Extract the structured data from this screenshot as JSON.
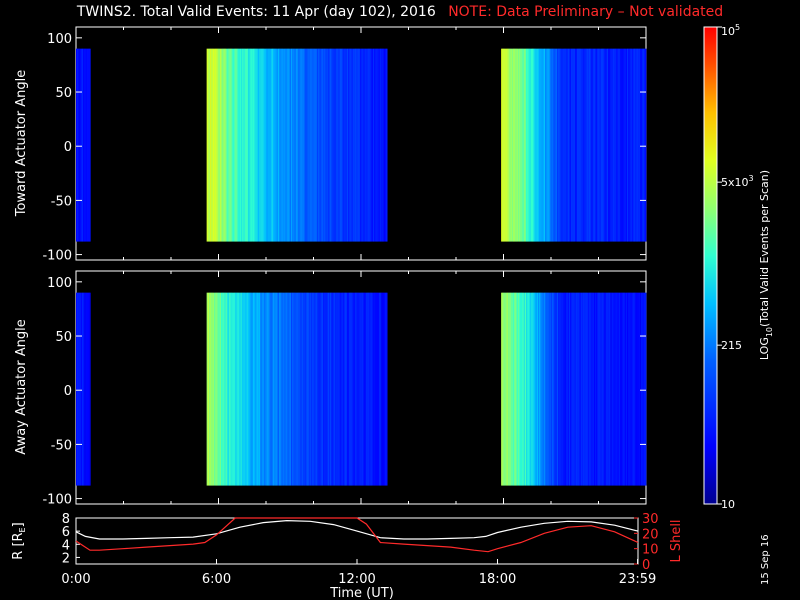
{
  "title": {
    "main": "TWINS2. Total Valid Events: 11 Apr (day 102), 2016",
    "note": "NOTE: Data Preliminary – Not validated"
  },
  "datestamp": "15 Sep 16",
  "colors": {
    "background": "#000000",
    "note_red": "#ff2a2a",
    "ephemeris_R": "#ffffff",
    "ephemeris_L": "#ff2a2a"
  },
  "chart_data": [
    {
      "type": "heatmap",
      "name": "toward",
      "ylabel": "Toward Actuator Angle",
      "xlim_hours": [
        0,
        24
      ],
      "ylim": [
        -105,
        110
      ],
      "yticks": [
        100,
        50,
        0,
        -50,
        -100
      ],
      "angle_range": [
        -88,
        90
      ],
      "data_segments_hours": [
        [
          0.0,
          0.6
        ],
        [
          5.5,
          13.1
        ],
        [
          17.9,
          24.0
        ]
      ],
      "levels_log10": [
        {
          "t": 0.0,
          "v": 1.6
        },
        {
          "t": 0.6,
          "v": 1.6
        },
        {
          "t": 5.5,
          "v": 3.9
        },
        {
          "t": 6.5,
          "v": 3.3
        },
        {
          "t": 7.5,
          "v": 2.9
        },
        {
          "t": 8.5,
          "v": 2.6
        },
        {
          "t": 10.0,
          "v": 2.1
        },
        {
          "t": 12.0,
          "v": 1.8
        },
        {
          "t": 13.1,
          "v": 1.6
        },
        {
          "t": 17.9,
          "v": 3.8
        },
        {
          "t": 19.0,
          "v": 3.2
        },
        {
          "t": 19.8,
          "v": 2.5
        },
        {
          "t": 20.5,
          "v": 1.8
        },
        {
          "t": 24.0,
          "v": 1.7
        }
      ]
    },
    {
      "type": "heatmap",
      "name": "away",
      "ylabel": "Away Actuator Angle",
      "xlim_hours": [
        0,
        24
      ],
      "ylim": [
        -105,
        110
      ],
      "yticks": [
        100,
        50,
        0,
        -50,
        -100
      ],
      "angle_range": [
        -88,
        90
      ],
      "data_segments_hours": [
        [
          0.0,
          0.6
        ],
        [
          5.5,
          13.1
        ],
        [
          17.9,
          24.0
        ]
      ],
      "levels_log10": [
        {
          "t": 0.0,
          "v": 1.6
        },
        {
          "t": 0.6,
          "v": 1.6
        },
        {
          "t": 5.5,
          "v": 3.7
        },
        {
          "t": 6.5,
          "v": 3.0
        },
        {
          "t": 7.5,
          "v": 2.6
        },
        {
          "t": 8.5,
          "v": 2.3
        },
        {
          "t": 10.0,
          "v": 1.9
        },
        {
          "t": 12.0,
          "v": 1.7
        },
        {
          "t": 13.1,
          "v": 1.6
        },
        {
          "t": 17.9,
          "v": 3.6
        },
        {
          "t": 19.0,
          "v": 3.0
        },
        {
          "t": 19.8,
          "v": 2.3
        },
        {
          "t": 20.5,
          "v": 1.7
        },
        {
          "t": 24.0,
          "v": 1.6
        }
      ]
    },
    {
      "type": "line",
      "name": "ephemeris",
      "xlabel": "Time (UT)",
      "ylabel_left": "R [R",
      "ylabel_left_sub": "E",
      "ylabel_left_close": "]",
      "ylabel_right": "L Shell",
      "xlim_hours": [
        0,
        24
      ],
      "ylim_left": [
        1,
        8
      ],
      "yticks_left": [
        8,
        6,
        4,
        2
      ],
      "ylim_right": [
        0,
        30
      ],
      "yticks_right": [
        30,
        20,
        10,
        0
      ],
      "xticks": [
        {
          "value": 0,
          "label": "0:00"
        },
        {
          "value": 6,
          "label": "6:00"
        },
        {
          "value": 12,
          "label": "12:00"
        },
        {
          "value": 18,
          "label": "18:00"
        },
        {
          "value": 23.98,
          "label": "23:59"
        }
      ],
      "series": [
        {
          "axis": "left",
          "color": "#ffffff",
          "x": [
            0,
            0.4,
            1,
            2,
            3,
            4,
            5,
            6,
            7,
            8,
            9,
            10,
            11,
            12,
            13,
            14,
            15,
            16,
            17,
            17.5,
            18,
            19,
            20,
            21,
            22,
            23,
            24
          ],
          "y": [
            5.9,
            5.2,
            4.8,
            4.8,
            4.9,
            5.0,
            5.1,
            5.6,
            6.6,
            7.3,
            7.6,
            7.5,
            7.0,
            6.0,
            5.0,
            4.8,
            4.8,
            4.9,
            5.0,
            5.2,
            5.8,
            6.6,
            7.2,
            7.5,
            7.4,
            6.9,
            6.0
          ]
        },
        {
          "axis": "right",
          "color": "#ff2a2a",
          "x": [
            0,
            0.3,
            0.6,
            1,
            2,
            3,
            4,
            5,
            5.5,
            6,
            6.8,
            7.0,
            12.0,
            12.4,
            13,
            14,
            15,
            16,
            17,
            17.6,
            18,
            19,
            20,
            21,
            22,
            23,
            24
          ],
          "y": [
            15,
            12,
            9,
            9,
            10,
            11,
            12,
            13,
            14,
            19,
            30,
            30,
            30,
            26,
            14,
            13,
            12,
            11,
            9,
            8,
            10,
            14,
            20,
            24,
            25,
            21,
            14
          ]
        }
      ]
    }
  ],
  "colorbar": {
    "label_prefix": "LOG",
    "label_sub": "10",
    "label_suffix": "(Total Valid Events per Scan)",
    "min_log10": 1,
    "max_log10": 5,
    "ticks": [
      {
        "value": 5,
        "label": "10",
        "sup": "5"
      },
      {
        "value": 3.699,
        "label": "5x10",
        "sup": "3"
      },
      {
        "value": 2.332,
        "label": "215",
        "sup": ""
      },
      {
        "value": 1,
        "label": "10",
        "sup": ""
      }
    ]
  }
}
